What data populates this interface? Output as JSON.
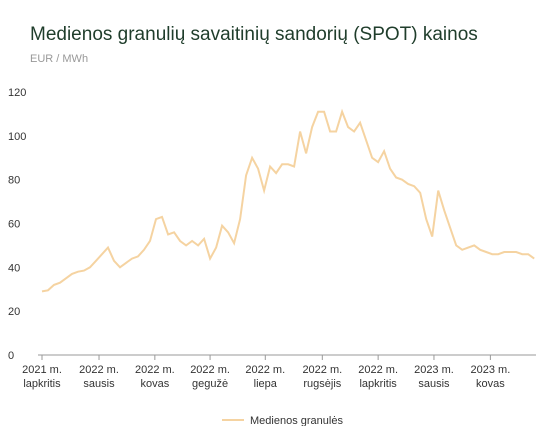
{
  "chart_data": {
    "type": "line",
    "title": "Medienos granulių savaitinių sandorių (SPOT) kainos",
    "subtitle": "EUR / MWh",
    "series": [
      {
        "name": "Medienos granulės",
        "color": "#f5d3a1",
        "values": [
          29,
          29.5,
          32,
          33,
          35,
          37,
          38,
          38.5,
          40,
          43,
          46,
          49,
          43,
          40,
          42,
          44,
          45,
          48,
          52,
          62,
          63,
          55,
          56,
          52,
          50,
          52,
          50,
          53,
          44,
          49,
          59,
          56,
          51,
          62,
          82,
          90,
          85,
          75,
          86,
          83,
          87,
          87,
          86,
          102,
          92,
          104,
          111,
          111,
          102,
          102,
          111,
          104,
          102,
          106,
          98,
          90,
          88,
          93,
          85,
          81,
          80,
          78,
          77,
          74,
          62,
          54,
          75,
          66,
          58,
          50,
          48,
          49,
          50,
          48,
          47,
          46,
          46,
          47,
          47,
          47,
          46,
          46,
          44
        ]
      }
    ],
    "xlim": [
      0,
      82.3
    ],
    "xticks": [
      {
        "value": 0,
        "label": "2021 m.\nlapkritis"
      },
      {
        "value": 9.5,
        "label": "2022 m.\nsausis"
      },
      {
        "value": 18.8,
        "label": "2022 m.\nkovas"
      },
      {
        "value": 28,
        "label": "2022 m.\ngegužė"
      },
      {
        "value": 37.2,
        "label": "2022 m.\nliepa"
      },
      {
        "value": 46.7,
        "label": "2022 m.\nrugsėjis"
      },
      {
        "value": 56,
        "label": "2022 m.\nlapkritis"
      },
      {
        "value": 65.3,
        "label": "2023 m.\nsausis"
      },
      {
        "value": 74.7,
        "label": "2023 m.\nkovas"
      }
    ],
    "ylim": [
      0,
      120
    ],
    "yticks": [
      0,
      20,
      40,
      60,
      80,
      100,
      120
    ],
    "grid": false,
    "legend": "bottom"
  }
}
